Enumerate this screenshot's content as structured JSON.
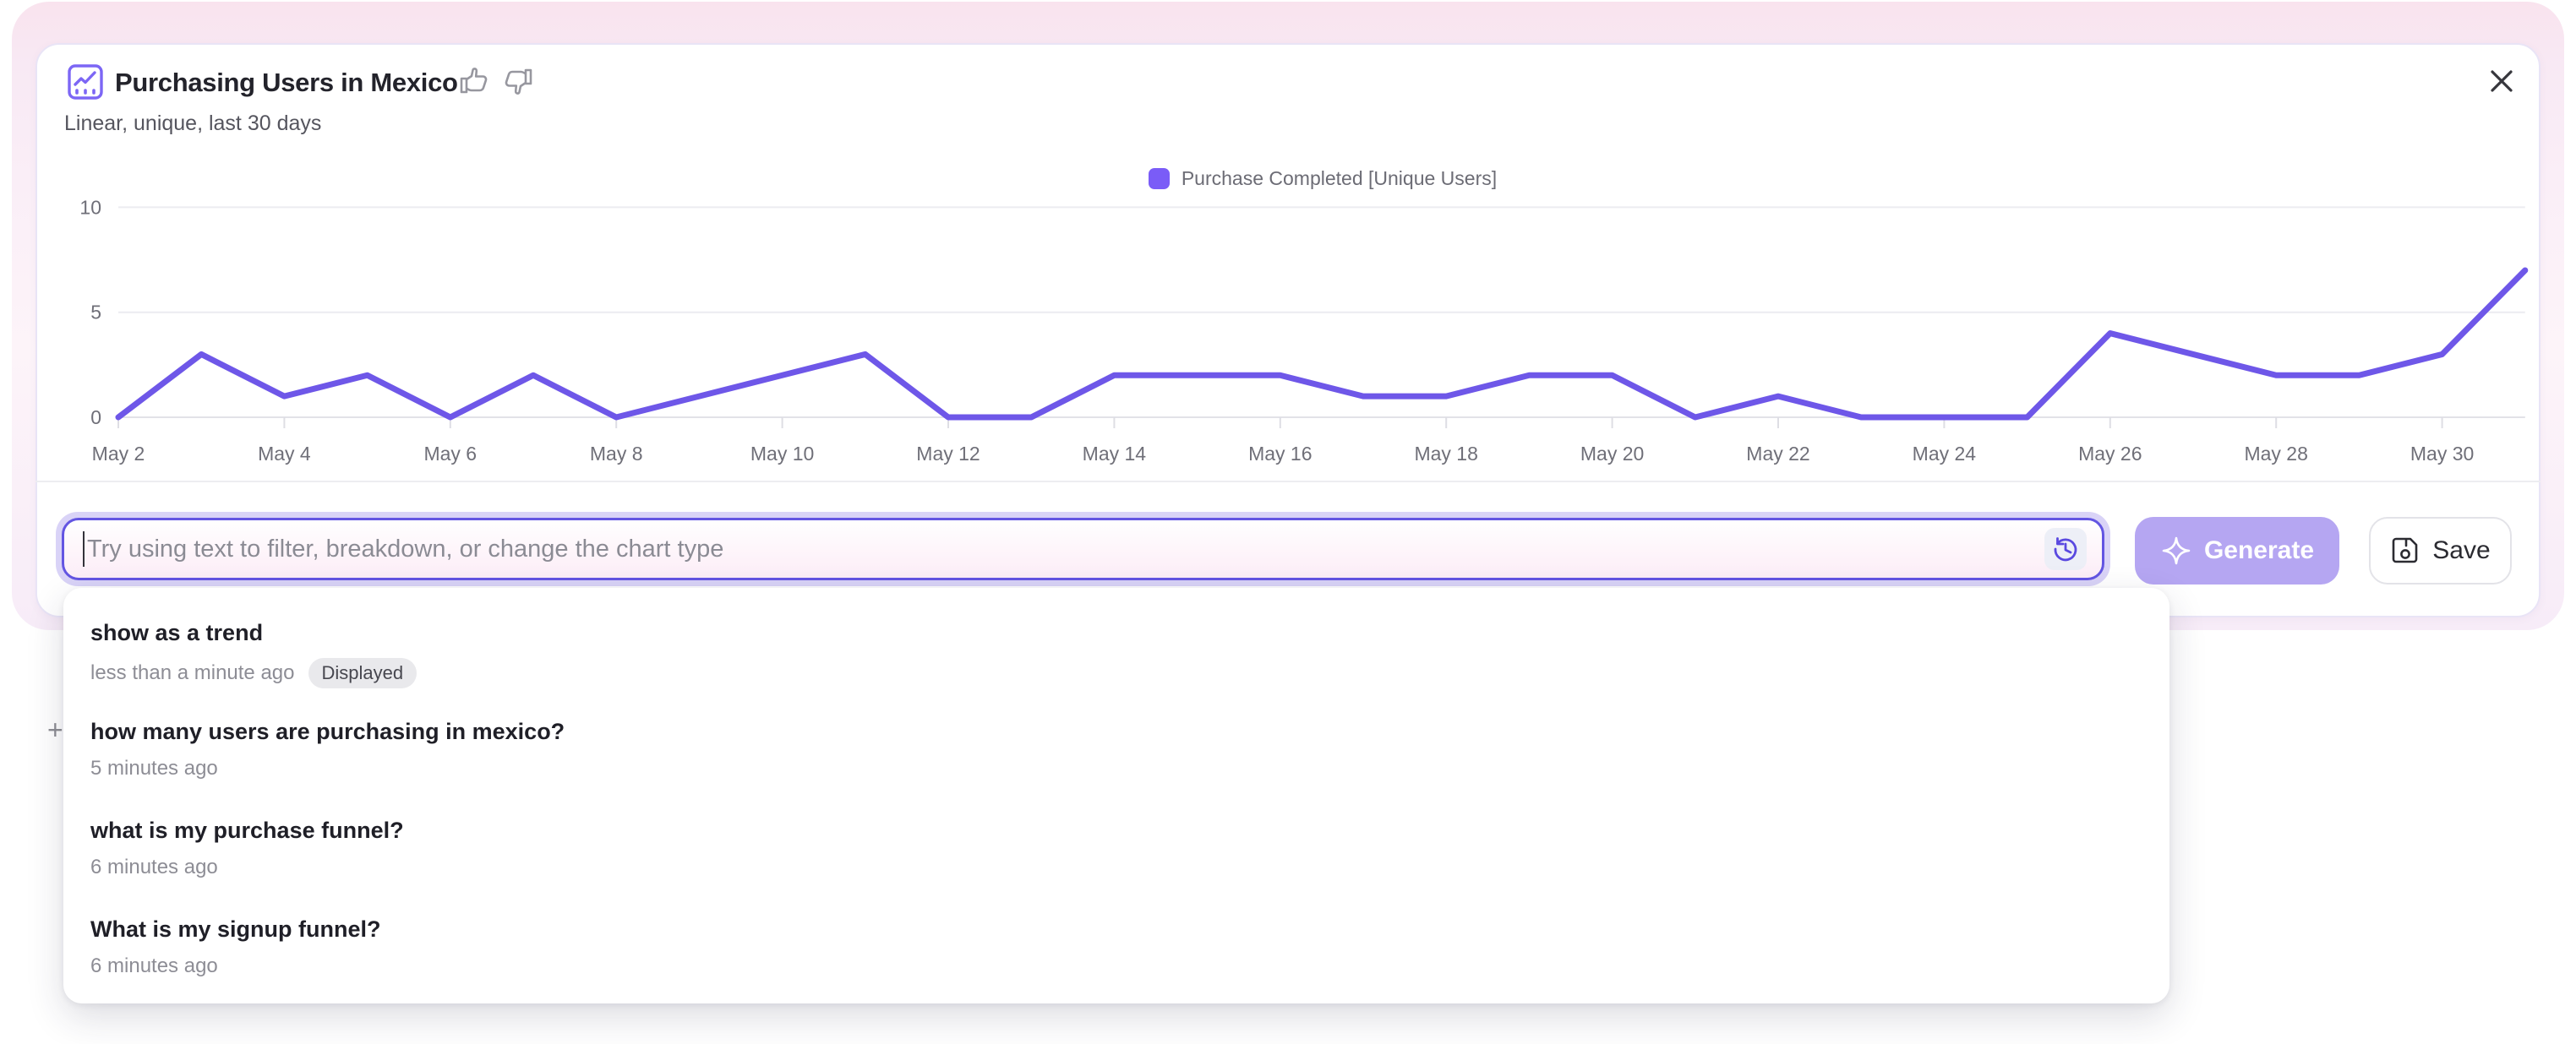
{
  "header": {
    "title": "Purchasing Users in Mexico",
    "subtitle": "Linear, unique, last 30 days"
  },
  "legend": {
    "label": "Purchase Completed [Unique Users]"
  },
  "chart_data": {
    "type": "line",
    "title": "Purchasing Users in Mexico",
    "series": [
      {
        "name": "Purchase Completed [Unique Users]",
        "values": [
          0,
          3,
          1,
          2,
          0,
          2,
          0,
          1,
          2,
          3,
          0,
          0,
          2,
          2,
          2,
          1,
          1,
          2,
          2,
          0,
          1,
          0,
          0,
          0,
          4,
          3,
          2,
          2,
          3,
          7
        ]
      }
    ],
    "x": [
      "May 2",
      "May 3",
      "May 4",
      "May 5",
      "May 6",
      "May 7",
      "May 8",
      "May 9",
      "May 10",
      "May 11",
      "May 12",
      "May 13",
      "May 14",
      "May 15",
      "May 16",
      "May 17",
      "May 18",
      "May 19",
      "May 20",
      "May 21",
      "May 22",
      "May 23",
      "May 24",
      "May 25",
      "May 26",
      "May 27",
      "May 28",
      "May 29",
      "May 30",
      "May 31"
    ],
    "xtick_every": 2,
    "yticks": [
      0,
      5,
      10
    ],
    "ylim": [
      0,
      10
    ],
    "xlabel": "",
    "ylabel": "",
    "grid": true,
    "legend_position": "top-center",
    "line_color": "#6e57e8",
    "legend_swatch_color": "#7a5cf7"
  },
  "input": {
    "placeholder": "Try using text to filter, breakdown, or change the chart type"
  },
  "actions": {
    "generate_label": "Generate",
    "save_label": "Save"
  },
  "history": {
    "items": [
      {
        "title": "show as a trend",
        "time": "less than a minute ago",
        "badge": "Displayed"
      },
      {
        "title": "how many users are purchasing in mexico?",
        "time": "5 minutes ago"
      },
      {
        "title": "what is my purchase funnel?",
        "time": "6 minutes ago"
      },
      {
        "title": "What is my signup funnel?",
        "time": "6 minutes ago"
      }
    ]
  },
  "misc": {
    "plus": "+"
  },
  "colors": {
    "accent_purple": "#6355e2",
    "line_purple": "#6e57e8",
    "generate_bg": "#b5a6f2",
    "glow_pink": "#f9e3ee",
    "axis_text": "#6f6f78"
  }
}
